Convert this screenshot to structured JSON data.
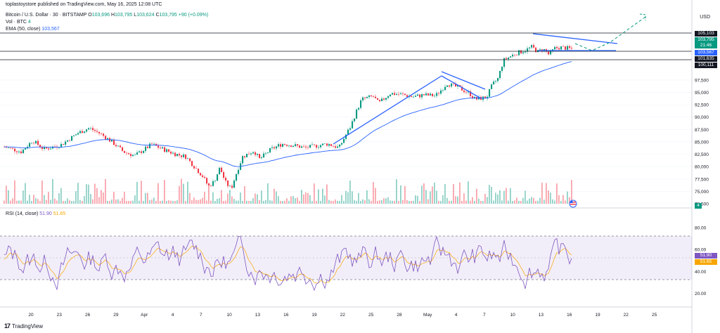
{
  "header": {
    "publisher": "toplastoystore published on TradingView.com, May 16, 2025 12:08 UTC",
    "symbol": "Bitcoin / U.S. Dollar · 30 · BITSTAMP",
    "ohlc": {
      "o": "O",
      "o_val": "103,696",
      "h": "H",
      "h_val": "103,795",
      "l": "L",
      "l_val": "103,624",
      "c": "C",
      "c_val": "103,795",
      "chg": "+90 (+0.09%)"
    },
    "vol_label": "Vol · BTC",
    "vol_val": "4",
    "ema_label": "EMA (50, close)",
    "ema_val": "103,567",
    "rsi_label": "RSI (14, close)",
    "rsi_val1": "51.90",
    "rsi_val2": "51.65"
  },
  "currency": "USD",
  "footer": {
    "brand": "TradingView"
  },
  "price_tags": {
    "r1": "105,103",
    "last": "103,795",
    "timer": "21:46",
    "ema": "103,567",
    "r2": "101,635",
    "r3": "100,111",
    "vol": "4",
    "rsi1": "51.90",
    "rsi2": "51.65"
  },
  "colors": {
    "up": "#089981",
    "down": "#f23645",
    "ema": "#2962ff",
    "rsi": "#7e57c2",
    "rsi_ma": "#f7a600",
    "draw": "#2962ff",
    "proj": "#089981"
  },
  "chart_data": [
    {
      "type": "candlestick",
      "title": "Bitcoin / U.S. Dollar · 30 · BITSTAMP",
      "ylim": [
        72500,
        107000
      ],
      "y_ticks": [
        "97,500",
        "95,000",
        "92,500",
        "90,000",
        "87,500",
        "85,000",
        "82,500",
        "80,000",
        "77,500",
        "75,000",
        "72,500"
      ],
      "x_ticks": [
        "20",
        "23",
        "26",
        "29",
        "Apr",
        "4",
        "7",
        "10",
        "13",
        "16",
        "19",
        "22",
        "25",
        "28",
        "May",
        "4",
        "7",
        "10",
        "13",
        "16",
        "19",
        "22",
        "25"
      ],
      "price_path": [
        [
          0,
          84000
        ],
        [
          0.03,
          83000
        ],
        [
          0.05,
          85300
        ],
        [
          0.07,
          83500
        ],
        [
          0.1,
          84400
        ],
        [
          0.13,
          86800
        ],
        [
          0.15,
          87800
        ],
        [
          0.17,
          86600
        ],
        [
          0.19,
          85000
        ],
        [
          0.21,
          83000
        ],
        [
          0.23,
          82200
        ],
        [
          0.26,
          84500
        ],
        [
          0.28,
          83500
        ],
        [
          0.3,
          82600
        ],
        [
          0.32,
          82000
        ],
        [
          0.35,
          78000
        ],
        [
          0.36,
          76000
        ],
        [
          0.37,
          77000
        ],
        [
          0.38,
          79800
        ],
        [
          0.39,
          76800
        ],
        [
          0.4,
          75500
        ],
        [
          0.41,
          79000
        ],
        [
          0.42,
          82000
        ],
        [
          0.44,
          83200
        ],
        [
          0.45,
          81500
        ],
        [
          0.47,
          83500
        ],
        [
          0.49,
          84600
        ],
        [
          0.51,
          84300
        ],
        [
          0.53,
          83800
        ],
        [
          0.55,
          84200
        ],
        [
          0.57,
          84600
        ],
        [
          0.59,
          83800
        ],
        [
          0.6,
          86000
        ],
        [
          0.61,
          88000
        ],
        [
          0.62,
          91000
        ],
        [
          0.63,
          93600
        ],
        [
          0.65,
          94200
        ],
        [
          0.66,
          92800
        ],
        [
          0.68,
          94800
        ],
        [
          0.7,
          94600
        ],
        [
          0.72,
          94100
        ],
        [
          0.74,
          94500
        ],
        [
          0.76,
          94300
        ],
        [
          0.77,
          95500
        ],
        [
          0.78,
          96800
        ],
        [
          0.8,
          96000
        ],
        [
          0.82,
          94800
        ],
        [
          0.83,
          93600
        ],
        [
          0.85,
          94000
        ],
        [
          0.86,
          96500
        ],
        [
          0.87,
          97800
        ],
        [
          0.88,
          101500
        ],
        [
          0.9,
          102800
        ],
        [
          0.92,
          103600
        ],
        [
          0.93,
          104200
        ],
        [
          0.94,
          103200
        ],
        [
          0.95,
          103800
        ],
        [
          0.96,
          102600
        ],
        [
          0.97,
          103900
        ],
        [
          0.98,
          104100
        ],
        [
          1,
          103800
        ]
      ],
      "ema50_last": 103567,
      "last_close": 103795,
      "resistance_lines": [
        105103,
        101635,
        100111
      ],
      "annotations": [
        "rising wedge trendline",
        "falling flag channel",
        "triangle consolidation",
        "dashed projected path"
      ]
    },
    {
      "type": "bar",
      "title": "Vol · BTC",
      "last": 4
    },
    {
      "type": "line",
      "title": "RSI (14, close)",
      "ylim": [
        12,
        87
      ],
      "y_ticks": [
        "80.00",
        "60.00",
        "40.00",
        "20.00"
      ],
      "bands": [
        30,
        70
      ],
      "last": 51.9,
      "ma_last": 51.65
    }
  ]
}
